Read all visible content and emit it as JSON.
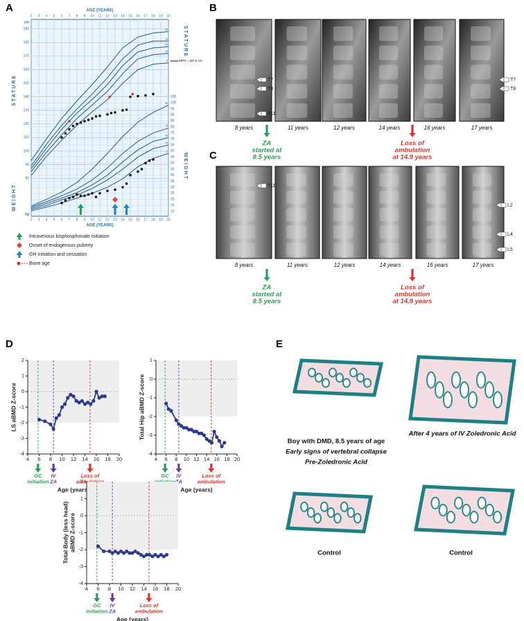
{
  "panel_labels": [
    "A",
    "B",
    "C",
    "D",
    "E"
  ],
  "chart_data": [
    {
      "type": "growth",
      "xlabel": "AGE (YEARS)",
      "ylabel": "STATURE",
      "y2label": "WEIGHT",
      "yunit": "cm",
      "y2unit": "kg",
      "annotation": "MPH = 167.5 cm",
      "xlim": [
        2,
        20
      ],
      "xticks": [
        2,
        3,
        4,
        5,
        6,
        7,
        8,
        9,
        10,
        11,
        12,
        13,
        14,
        15,
        16,
        17,
        18,
        19,
        20
      ],
      "ylim": [
        52,
        197
      ],
      "yticks": [
        80,
        90,
        100,
        110,
        120,
        130,
        140,
        150,
        160,
        170,
        180,
        190
      ],
      "y2lim": [
        6,
        169
      ],
      "y2ticks": [
        10,
        15,
        20,
        25,
        30,
        35,
        40,
        45,
        50,
        55,
        60,
        65,
        70,
        75,
        80,
        85,
        90,
        95,
        100,
        105
      ],
      "grid": true,
      "series": [
        {
          "name": "5",
          "color": "#1f5b8a",
          "x": [
            2,
            4,
            6,
            8,
            10,
            12,
            14,
            16,
            18,
            20
          ],
          "values": [
            82,
            96,
            108,
            119,
            129,
            138,
            150,
            160,
            164,
            165
          ]
        },
        {
          "name": "25",
          "color": "#1f5b8a",
          "x": [
            2,
            4,
            6,
            8,
            10,
            12,
            14,
            16,
            18,
            20
          ],
          "values": [
            85,
            99,
            112,
            124,
            134,
            144,
            157,
            168,
            171,
            172
          ]
        },
        {
          "name": "50",
          "color": "#1f5b8a",
          "x": [
            2,
            4,
            6,
            8,
            10,
            12,
            14,
            16,
            18,
            20
          ],
          "values": [
            87,
            102,
            116,
            128,
            138,
            149,
            163,
            173,
            176,
            177
          ]
        },
        {
          "name": "75",
          "color": "#1f5b8a",
          "x": [
            2,
            4,
            6,
            8,
            10,
            12,
            14,
            16,
            18,
            20
          ],
          "values": [
            89,
            105,
            119,
            131,
            142,
            154,
            168,
            178,
            181,
            181
          ]
        },
        {
          "name": "95",
          "color": "#1f5b8a",
          "x": [
            2,
            4,
            6,
            8,
            10,
            12,
            14,
            16,
            18,
            20
          ],
          "values": [
            93,
            109,
            124,
            137,
            149,
            162,
            176,
            184,
            187,
            188
          ]
        },
        {
          "name": "5",
          "color": "#1f5b8a",
          "axis": "y2",
          "x": [
            2,
            4,
            6,
            8,
            10,
            12,
            14,
            16,
            18,
            20
          ],
          "values": [
            10.5,
            13.5,
            17,
            21,
            25,
            30,
            37,
            47,
            54,
            58
          ]
        },
        {
          "name": "25",
          "color": "#1f5b8a",
          "axis": "y2",
          "x": [
            2,
            4,
            6,
            8,
            10,
            12,
            14,
            16,
            18,
            20
          ],
          "values": [
            11.5,
            15,
            19.5,
            23.5,
            29,
            36,
            45,
            55,
            62,
            65
          ]
        },
        {
          "name": "50",
          "color": "#1f5b8a",
          "axis": "y2",
          "x": [
            2,
            4,
            6,
            8,
            10,
            12,
            14,
            16,
            18,
            20
          ],
          "values": [
            12.5,
            16.5,
            21,
            25.5,
            32,
            40,
            51,
            61,
            68,
            71
          ]
        },
        {
          "name": "75",
          "color": "#1f5b8a",
          "axis": "y2",
          "x": [
            2,
            4,
            6,
            8,
            10,
            12,
            14,
            16,
            18,
            20
          ],
          "values": [
            13.5,
            18,
            23,
            28.5,
            36,
            46,
            58,
            68,
            75,
            79
          ]
        },
        {
          "name": "95",
          "color": "#1f5b8a",
          "axis": "y2",
          "x": [
            2,
            4,
            6,
            8,
            10,
            12,
            14,
            16,
            18,
            20
          ],
          "values": [
            14.5,
            20,
            26,
            34,
            45,
            58,
            72,
            84,
            92,
            98
          ]
        },
        {
          "color": "#111111",
          "marker": "dot",
          "x": [
            6,
            6.5,
            7,
            7.5,
            8,
            8.5,
            9,
            9.5,
            10,
            10.5,
            11,
            12,
            12.5,
            13,
            14,
            14.5,
            15,
            16,
            17,
            18
          ],
          "values": [
            110,
            113,
            116,
            118.5,
            120,
            121,
            122,
            123,
            124,
            125.5,
            126,
            127,
            128,
            128.5,
            130,
            130.5,
            140,
            140.5,
            141,
            142
          ]
        },
        {
          "color": "#111111",
          "marker": "dot",
          "axis": "y2",
          "x": [
            6,
            6.5,
            7,
            7.5,
            8,
            8.5,
            9,
            9.5,
            10,
            10.5,
            11,
            12,
            13,
            14,
            14.5,
            15,
            16,
            16.5,
            17,
            17.5,
            18
          ],
          "values": [
            17,
            19,
            21,
            22,
            24,
            23,
            23,
            24,
            25,
            22,
            25,
            27,
            28,
            30,
            33,
            40,
            43,
            45,
            50,
            52,
            53
          ]
        },
        {
          "color": "#d9342b",
          "marker": "dot",
          "x": [
            7,
            12.3,
            15.3
          ],
          "values": [
            122,
            140,
            142
          ]
        }
      ],
      "events": [
        {
          "x": 8.5,
          "color": "#2a9d5c",
          "shape": "arrow"
        },
        {
          "x": 13,
          "color": "#e04040",
          "shape": "diamond"
        },
        {
          "x": 13,
          "color": "#2f7fc1",
          "shape": "arrow"
        },
        {
          "x": 14.5,
          "color": "#2f7fc1",
          "shape": "arrow"
        }
      ],
      "legend": [
        {
          "name": "Intravenous bisphosphonate initiation",
          "color": "#2a9d5c",
          "shape": "arrow"
        },
        {
          "name": "Onset of endogenous puberty",
          "color": "#e04040",
          "shape": "diamond"
        },
        {
          "name": "GH initiation and cessation",
          "color": "#2f7fc1",
          "shape": "arrow"
        },
        {
          "name": "Bone age",
          "color": "#d9342b",
          "shape": "dot"
        }
      ]
    },
    {
      "type": "line",
      "ylabel": [
        "LS aBMD Z-score"
      ],
      "xlabel": "Age (years)",
      "xlim": [
        4,
        20
      ],
      "xticks": [
        4,
        6,
        8,
        10,
        12,
        14,
        16,
        18,
        20
      ],
      "ylim": [
        -4,
        2
      ],
      "yticks": [
        -4,
        -3,
        -2,
        -1,
        0,
        1,
        2
      ],
      "band": [
        -2,
        2
      ],
      "reference": 0,
      "x": [
        6,
        7,
        8,
        8.5,
        9,
        9.5,
        10,
        10.5,
        11,
        11.5,
        12,
        12.5,
        13,
        13.5,
        14,
        14.5,
        15,
        15.5,
        16,
        16.5,
        17,
        17.5
      ],
      "series": [
        {
          "color": "#2b3990",
          "values": [
            -1.8,
            -1.9,
            -2.1,
            -2.4,
            -1.7,
            -1.5,
            -1.0,
            -0.8,
            -0.4,
            -0.2,
            -0.3,
            -0.6,
            -0.7,
            -0.6,
            -0.8,
            -0.7,
            -0.8,
            -0.6,
            0,
            -0.4,
            -0.3,
            -0.3
          ]
        }
      ],
      "events": [
        {
          "x": 5.8,
          "color": "#2a9d5c",
          "label": [
            "GC",
            "initiation"
          ]
        },
        {
          "x": 8.5,
          "color": "#6a3d9a",
          "label": [
            "IV",
            "ZA"
          ]
        },
        {
          "x": 14.9,
          "color": "#d9342b",
          "label": [
            "Loss of",
            "ambulation"
          ]
        }
      ]
    },
    {
      "type": "line",
      "ylabel": [
        "Total Hip aBMD Z-score"
      ],
      "xlabel": "Age (years)",
      "xlim": [
        4,
        20
      ],
      "xticks": [
        4,
        6,
        8,
        10,
        12,
        14,
        16,
        18,
        20
      ],
      "ylim": [
        -4,
        1
      ],
      "yticks": [
        -4,
        -3,
        -2,
        -1,
        0,
        1
      ],
      "band": [
        -2,
        1
      ],
      "reference": 0,
      "x": [
        6,
        6.5,
        7,
        8,
        8.5,
        9,
        9.5,
        10,
        10.5,
        11,
        11.5,
        12,
        12.5,
        13,
        13.5,
        14,
        14.5,
        15,
        15.5,
        16,
        16.5,
        17,
        17.5
      ],
      "series": [
        {
          "color": "#2b3990",
          "values": [
            -1.3,
            -1.6,
            -1.7,
            -2.2,
            -2.4,
            -2.5,
            -2.6,
            -2.6,
            -2.7,
            -2.7,
            -2.8,
            -2.8,
            -2.9,
            -2.9,
            -3.0,
            -3.2,
            -3.3,
            -3.4,
            -2.8,
            -3.1,
            -3.3,
            -3.6,
            -3.4
          ]
        }
      ],
      "events": [
        {
          "x": 5.8,
          "color": "#2a9d5c",
          "label": [
            "GC",
            "initiation"
          ]
        },
        {
          "x": 8.5,
          "color": "#6a3d9a",
          "label": [
            "IV",
            "ZA"
          ]
        },
        {
          "x": 14.9,
          "color": "#d9342b",
          "label": [
            "Loss of",
            "ambulation"
          ]
        }
      ]
    },
    {
      "type": "line",
      "ylabel": [
        "Total Body (less head)",
        "aBMD Z-score"
      ],
      "xlabel": "Age (years)",
      "xlim": [
        4,
        20
      ],
      "xticks": [
        4,
        6,
        8,
        10,
        12,
        14,
        16,
        18,
        20
      ],
      "ylim": [
        -4,
        2
      ],
      "yticks": [
        -4,
        -3,
        -2,
        -1,
        0,
        1,
        2
      ],
      "band": [
        -2,
        2
      ],
      "reference": 0,
      "x": [
        6,
        7,
        8,
        8.5,
        9,
        9.5,
        10,
        10.5,
        11,
        11.5,
        12,
        12.5,
        13,
        13.5,
        14,
        14.5,
        15,
        15.5,
        16,
        16.5,
        17,
        17.5,
        18
      ],
      "series": [
        {
          "color": "#2b3990",
          "values": [
            -1.8,
            -2.1,
            -2.1,
            -2.2,
            -2.1,
            -2.2,
            -2.1,
            -2.2,
            -2.1,
            -2.2,
            -2.2,
            -2.1,
            -2.2,
            -2.3,
            -2.4,
            -2.3,
            -2.3,
            -2.4,
            -2.3,
            -2.4,
            -2.3,
            -2.4,
            -2.3
          ]
        }
      ],
      "events": [
        {
          "x": 5.8,
          "color": "#2a9d5c",
          "label": [
            "GC",
            "initiation"
          ]
        },
        {
          "x": 8.5,
          "color": "#6a3d9a",
          "label": [
            "IV",
            "ZA"
          ]
        },
        {
          "x": 14.9,
          "color": "#d9342b",
          "label": [
            "Loss of",
            "ambulation"
          ]
        }
      ]
    }
  ],
  "xray_b": {
    "ages": [
      "8 years",
      "11 years",
      "12 years",
      "14 years",
      "16 years",
      "17 years"
    ],
    "vertebrae": [
      "T7",
      "T8",
      "T11",
      "T7",
      "T8"
    ]
  },
  "xray_c": {
    "ages": [
      "8 years",
      "11 years",
      "12 years",
      "14 years",
      "16 years",
      "17 years"
    ],
    "vertebrae": [
      "T11",
      "L2",
      "L4",
      "L5"
    ]
  },
  "timeline": {
    "start": [
      "ZA",
      "started at",
      "8.5 years"
    ],
    "loss": [
      "Loss of",
      "ambulation",
      "at 14.9 years"
    ]
  },
  "histology": {
    "case_caption": [
      "Boy with DMD, 8.5 years of age",
      "Early signs of vertebral collapse",
      "Pre-Zoledronic Acid"
    ],
    "after_caption": "After 4 years of IV Zoledronic Acid",
    "control_captions": [
      "Control",
      "Control"
    ]
  }
}
